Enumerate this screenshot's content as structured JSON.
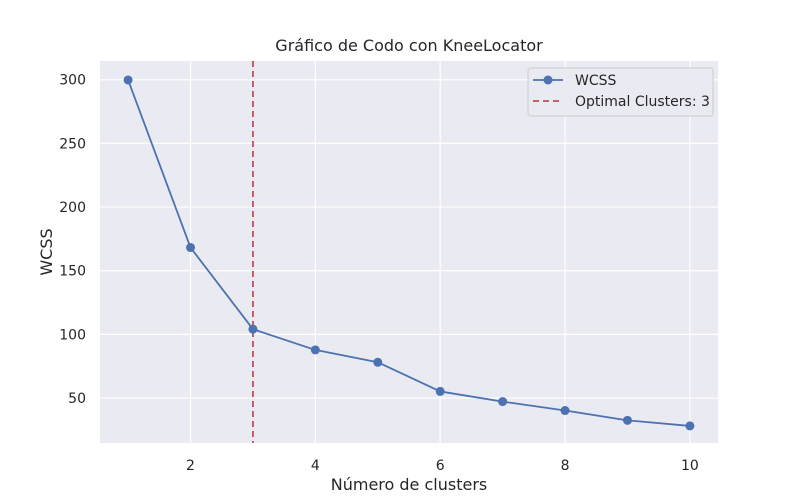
{
  "chart_data": {
    "type": "line",
    "title": "Gráfico de Codo con KneeLocator",
    "xlabel": "Número de clusters",
    "ylabel": "WCSS",
    "x": [
      1,
      2,
      3,
      4,
      5,
      6,
      7,
      8,
      9,
      10
    ],
    "series": [
      {
        "name": "WCSS",
        "values": [
          299.8,
          168.2,
          104.1,
          87.8,
          78.1,
          55.2,
          47.2,
          40.2,
          32.5,
          28.1
        ],
        "color": "#4c72b0",
        "marker": "circle"
      }
    ],
    "vline": {
      "x": 3,
      "label": "Optimal Clusters: 3",
      "color": "#c44e52",
      "style": "dashed"
    },
    "xlim": [
      0.55,
      10.45
    ],
    "ylim": [
      14.7,
      314.7
    ],
    "xticks": [
      2,
      4,
      6,
      8,
      10
    ],
    "yticks": [
      50,
      100,
      150,
      200,
      250,
      300
    ],
    "grid": true,
    "background": "#eaeaf2",
    "legend_position": "top-right"
  }
}
